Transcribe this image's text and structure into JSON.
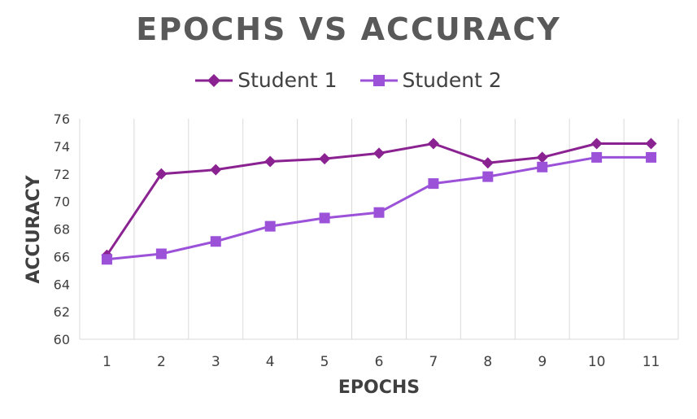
{
  "chart_data": {
    "type": "line",
    "title": "EPOCHS VS ACCURACY",
    "xlabel": "EPOCHS",
    "ylabel": "ACCURACY",
    "categories": [
      "1",
      "2",
      "3",
      "4",
      "5",
      "6",
      "7",
      "8",
      "9",
      "10",
      "11"
    ],
    "ylim": [
      60,
      76
    ],
    "yticks": [
      60,
      62,
      64,
      66,
      68,
      70,
      72,
      74,
      76
    ],
    "grid": "vertical",
    "legend": "top",
    "series": [
      {
        "name": "Student 1",
        "color": "#8B2291",
        "marker": "diamond",
        "values": [
          66.1,
          72.0,
          72.3,
          72.9,
          73.1,
          73.5,
          74.2,
          72.8,
          73.2,
          74.2,
          74.2
        ]
      },
      {
        "name": "Student 2",
        "color": "#9B52D9",
        "marker": "square",
        "values": [
          65.8,
          66.2,
          67.1,
          68.2,
          68.8,
          69.2,
          71.3,
          71.8,
          72.5,
          73.2,
          73.2
        ]
      }
    ]
  }
}
